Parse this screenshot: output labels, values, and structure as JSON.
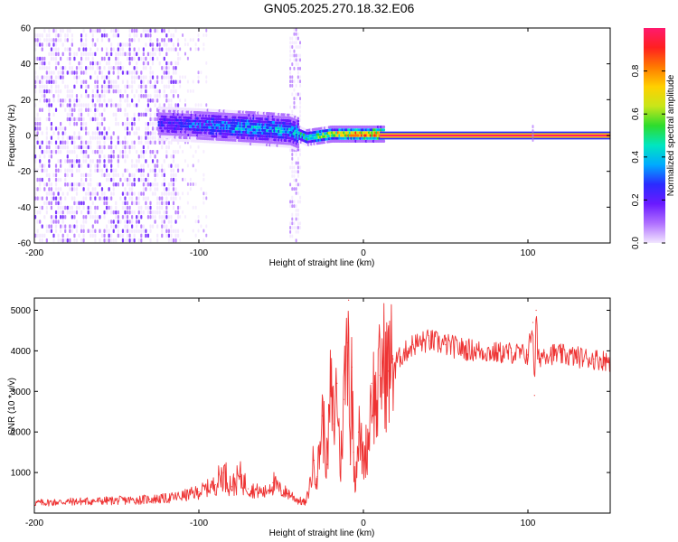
{
  "title": "GN05.2025.270.18.32.E06",
  "chart_data": [
    {
      "type": "heatmap",
      "xlabel": "Height of straight line (km)",
      "ylabel": "Frequency (Hz)",
      "xlim": [
        -200,
        150
      ],
      "ylim": [
        -60,
        60
      ],
      "xticks": [
        "-200",
        "-100",
        "0",
        "100"
      ],
      "xtick_values": [
        -200,
        -100,
        0,
        100
      ],
      "yticks": [
        "-60",
        "-40",
        "-20",
        "0",
        "20",
        "40",
        "60"
      ],
      "ytick_values": [
        -60,
        -40,
        -20,
        0,
        20,
        40,
        60
      ],
      "colorbar": {
        "label": "Normalized spectral amplitude",
        "range": [
          0,
          1
        ],
        "ticks": [
          "0.0",
          "0.2",
          "0.4",
          "0.6",
          "0.8"
        ],
        "tick_values": [
          0.0,
          0.2,
          0.4,
          0.6,
          0.8
        ],
        "colors": [
          "#f2e6ff",
          "#b070ff",
          "#6a1aff",
          "#2b2bff",
          "#00aaff",
          "#00e6c0",
          "#2ddc2d",
          "#c8e61a",
          "#ffd000",
          "#ff7a00",
          "#ff2020",
          "#ff1a6e"
        ]
      },
      "features": {
        "noise_region_km": [
          -200,
          -112
        ],
        "noise_band_km": [
          -45,
          -38
        ],
        "signal_track": [
          {
            "x": -125,
            "freq": 6,
            "amp": 0.25
          },
          {
            "x": -100,
            "freq": 5,
            "amp": 0.35
          },
          {
            "x": -80,
            "freq": 4,
            "amp": 0.4
          },
          {
            "x": -60,
            "freq": 3,
            "amp": 0.45
          },
          {
            "x": -45,
            "freq": 2,
            "amp": 0.4
          },
          {
            "x": -35,
            "freq": -2,
            "amp": 0.55
          },
          {
            "x": -20,
            "freq": 0,
            "amp": 0.7
          },
          {
            "x": -5,
            "freq": 0,
            "amp": 0.85
          },
          {
            "x": 10,
            "freq": 0,
            "amp": 0.95
          },
          {
            "x": 150,
            "freq": 0,
            "amp": 0.95
          }
        ]
      }
    },
    {
      "type": "line",
      "xlabel": "Height of straight line (km)",
      "ylabel": "SNR (10 * v/v)",
      "xlim": [
        -200,
        150
      ],
      "ylim": [
        0,
        5300
      ],
      "xticks": [
        "-200",
        "-100",
        "0",
        "100"
      ],
      "xtick_values": [
        -200,
        -100,
        0,
        100
      ],
      "yticks": [
        "1000",
        "2000",
        "3000",
        "4000",
        "5000"
      ],
      "ytick_values": [
        1000,
        2000,
        3000,
        4000,
        5000
      ],
      "series": [
        {
          "color": "#ee3333",
          "x": [
            -200,
            -180,
            -160,
            -140,
            -130,
            -120,
            -110,
            -100,
            -90,
            -85,
            -80,
            -75,
            -70,
            -60,
            -55,
            -50,
            -45,
            -40,
            -35,
            -33,
            -30,
            -28,
            -25,
            -22,
            -20,
            -18,
            -16,
            -14,
            -12,
            -10,
            -9,
            -8,
            -7,
            -6,
            -5,
            -3,
            0,
            3,
            5,
            8,
            10,
            12,
            15,
            18,
            20,
            25,
            30,
            35,
            40,
            50,
            60,
            70,
            80,
            90,
            100,
            103,
            104,
            105,
            106,
            110,
            120,
            130,
            140,
            150
          ],
          "y": [
            250,
            280,
            300,
            320,
            340,
            360,
            420,
            520,
            700,
            1000,
            650,
            900,
            600,
            500,
            750,
            550,
            480,
            320,
            250,
            600,
            1300,
            900,
            2400,
            1200,
            3000,
            2200,
            3200,
            1000,
            2800,
            4200,
            5250,
            1200,
            3600,
            1500,
            800,
            2000,
            1300,
            1800,
            3200,
            2600,
            3400,
            3700,
            3500,
            3800,
            3750,
            3950,
            4150,
            4200,
            4250,
            4150,
            4050,
            4000,
            3950,
            3950,
            3900,
            4700,
            2900,
            5000,
            3800,
            3950,
            3900,
            3850,
            3800,
            3750
          ]
        }
      ]
    }
  ]
}
